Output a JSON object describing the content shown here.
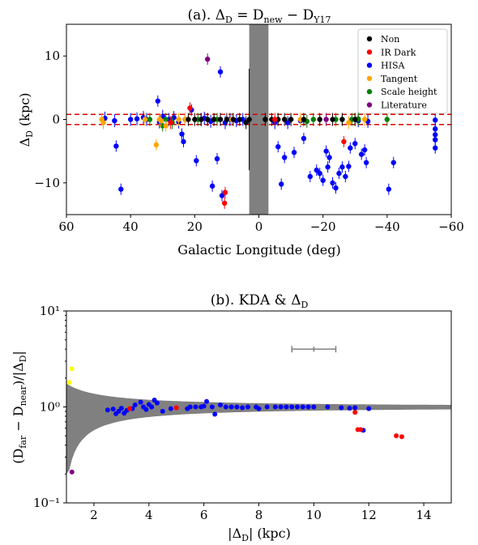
{
  "colors": {
    "Non": "#000000",
    "IR Dark": "#ff0000",
    "HISA": "#0000ff",
    "Tangent": "#ffa500",
    "Scale height": "#008000",
    "Literature": "#800080",
    "yellow": "#ffff00",
    "gray": "#808080"
  },
  "chart_data": [
    {
      "type": "scatter",
      "title": "(a). Δ_D = D_new − D_Y17",
      "xlabel": "Galactic Longitude (deg)",
      "ylabel": "Δ_D (kpc)",
      "xlim": [
        60,
        -60
      ],
      "ylim": [
        -15,
        15
      ],
      "xticks": [
        60,
        40,
        20,
        0,
        -20,
        -40,
        -60
      ],
      "xtick_labels": [
        "60",
        "40",
        "20",
        "0",
        "−20",
        "−40",
        "−60"
      ],
      "yticks": [
        -10,
        0,
        10
      ],
      "ytick_labels": [
        "−10",
        "0",
        "10"
      ],
      "legend_position": "top-right",
      "legend": [
        "Non",
        "IR Dark",
        "HISA",
        "Tangent",
        "Scale height",
        "Literature"
      ],
      "shaded_longitude_band": [
        -3,
        3
      ],
      "reference_lines_y": [
        -0.8,
        0.8
      ],
      "series": [
        {
          "name": "Non",
          "points": [
            [
              22,
              0
            ],
            [
              20,
              0
            ],
            [
              18,
              0
            ],
            [
              16,
              0
            ],
            [
              14,
              0
            ],
            [
              12,
              0
            ],
            [
              10,
              0
            ],
            [
              8,
              0
            ],
            [
              6,
              0
            ],
            [
              -2,
              0
            ],
            [
              -4,
              0
            ],
            [
              -6,
              0
            ],
            [
              -8,
              0
            ],
            [
              -10,
              0
            ],
            [
              -14,
              0
            ],
            [
              -19,
              0
            ],
            [
              -23,
              0
            ],
            [
              -26,
              0
            ],
            [
              -30,
              0
            ],
            [
              3,
              0
            ],
            [
              4,
              -0.5
            ]
          ]
        },
        {
          "name": "IR Dark",
          "points": [
            [
              21.5,
              1.8
            ],
            [
              10.5,
              -11.5
            ],
            [
              10.7,
              -13.2
            ],
            [
              -26.5,
              -3.5
            ],
            [
              27.5,
              -0.5
            ],
            [
              -5,
              0
            ]
          ]
        },
        {
          "name": "HISA",
          "points": [
            [
              48,
              0.2
            ],
            [
              45,
              -0.2
            ],
            [
              44.5,
              -4.2
            ],
            [
              43,
              -11
            ],
            [
              40,
              0
            ],
            [
              38,
              0.1
            ],
            [
              36,
              0.3
            ],
            [
              35,
              0
            ],
            [
              31.5,
              2.9
            ],
            [
              31,
              -0.4
            ],
            [
              30,
              0.5
            ],
            [
              28,
              0
            ],
            [
              26.5,
              0.3
            ],
            [
              25,
              -0.4
            ],
            [
              24,
              -2.3
            ],
            [
              23.5,
              -3.5
            ],
            [
              23,
              0
            ],
            [
              21,
              1.5
            ],
            [
              19.5,
              -6.5
            ],
            [
              18,
              0
            ],
            [
              17,
              0.2
            ],
            [
              15,
              -0.3
            ],
            [
              14.5,
              -10.5
            ],
            [
              13,
              -6.2
            ],
            [
              12,
              0
            ],
            [
              11.5,
              -12
            ],
            [
              10.5,
              -0.5
            ],
            [
              9,
              0
            ],
            [
              7,
              -0.2
            ],
            [
              5,
              0
            ],
            [
              -5,
              -0.5
            ],
            [
              -6,
              -4.3
            ],
            [
              -7,
              -10.2
            ],
            [
              -8,
              -6
            ],
            [
              -9,
              -0.5
            ],
            [
              -11,
              -5.2
            ],
            [
              -13,
              -0.2
            ],
            [
              -14,
              -3
            ],
            [
              -16,
              -9
            ],
            [
              -18,
              -8
            ],
            [
              -19,
              -8.5
            ],
            [
              -20,
              -9.6
            ],
            [
              -21,
              -5
            ],
            [
              -21.5,
              -7.5
            ],
            [
              -22,
              -6
            ],
            [
              -23,
              -10
            ],
            [
              -24,
              -10.8
            ],
            [
              -25,
              -8.5
            ],
            [
              -26,
              -7.5
            ],
            [
              -27,
              -9
            ],
            [
              -28,
              -7.4
            ],
            [
              -28.5,
              -4.5
            ],
            [
              -30,
              -3.8
            ],
            [
              -31,
              -0.2
            ],
            [
              -32,
              -5.5
            ],
            [
              -33,
              -4.8
            ],
            [
              -33.5,
              -6.8
            ],
            [
              -34,
              -0.3
            ],
            [
              -40.5,
              -11
            ],
            [
              -42,
              -6.8
            ],
            [
              -55,
              -1.5
            ],
            [
              -55,
              -2.4
            ],
            [
              -55,
              -3.2
            ],
            [
              -55,
              -4.5
            ],
            [
              -55,
              -0.1
            ],
            [
              12,
              7.5
            ]
          ]
        },
        {
          "name": "Tangent",
          "points": [
            [
              49,
              0
            ],
            [
              48.5,
              -0.5
            ],
            [
              35.5,
              0
            ],
            [
              32,
              -4
            ],
            [
              31,
              0
            ],
            [
              30.5,
              -0.2
            ],
            [
              29,
              -1
            ],
            [
              25,
              0
            ],
            [
              23,
              0
            ],
            [
              8.5,
              0
            ],
            [
              -6,
              0
            ],
            [
              -13,
              0
            ],
            [
              -28,
              -0.5
            ],
            [
              -30,
              0
            ],
            [
              -33,
              0
            ]
          ]
        },
        {
          "name": "Scale height",
          "points": [
            [
              34,
              0
            ],
            [
              30,
              -1
            ],
            [
              29,
              0
            ],
            [
              27,
              -0.5
            ],
            [
              19,
              0
            ],
            [
              16,
              0
            ],
            [
              13,
              0
            ],
            [
              -10,
              0
            ],
            [
              -14,
              0
            ],
            [
              -15,
              -0.3
            ],
            [
              -17,
              0
            ],
            [
              -24,
              0
            ],
            [
              -26,
              0
            ],
            [
              -29,
              0
            ],
            [
              -31,
              0.1
            ],
            [
              -40,
              0
            ]
          ]
        },
        {
          "name": "Literature",
          "points": [
            [
              16,
              9.5
            ],
            [
              -21,
              0
            ]
          ]
        }
      ]
    },
    {
      "type": "scatter",
      "title": "(b). KDA & Δ_D",
      "xlabel": "|Δ_D| (kpc)",
      "ylabel": "(D_far − D_near)/|Δ_D|",
      "xlim": [
        1,
        15
      ],
      "ylim": [
        0.1,
        10
      ],
      "yscale": "log",
      "xticks": [
        2,
        4,
        6,
        8,
        10,
        12,
        14
      ],
      "xtick_labels": [
        "2",
        "4",
        "6",
        "8",
        "10",
        "12",
        "14"
      ],
      "yticks": [
        0.1,
        1,
        10
      ],
      "ytick_labels": [
        "10⁻¹",
        "10⁰",
        "10¹"
      ],
      "errorbar": {
        "x": 10,
        "y": 4.0,
        "xerr": 0.8,
        "yerr": 0.25
      },
      "series": [
        {
          "name": "HISA",
          "points": [
            [
              2.5,
              0.93
            ],
            [
              2.7,
              0.95
            ],
            [
              2.8,
              0.85
            ],
            [
              2.9,
              0.9
            ],
            [
              3.0,
              0.97
            ],
            [
              3.1,
              0.86
            ],
            [
              3.2,
              0.92
            ],
            [
              3.4,
              0.96
            ],
            [
              3.5,
              1.05
            ],
            [
              3.7,
              1.12
            ],
            [
              3.8,
              1.0
            ],
            [
              3.9,
              0.94
            ],
            [
              4.0,
              1.06
            ],
            [
              4.1,
              1.0
            ],
            [
              4.2,
              1.18
            ],
            [
              4.3,
              1.1
            ],
            [
              4.5,
              0.9
            ],
            [
              4.8,
              0.96
            ],
            [
              5.4,
              0.96
            ],
            [
              5.5,
              1.0
            ],
            [
              5.7,
              1.0
            ],
            [
              5.9,
              1.0
            ],
            [
              6.0,
              1.02
            ],
            [
              6.1,
              1.14
            ],
            [
              6.3,
              1.0
            ],
            [
              6.4,
              0.84
            ],
            [
              6.6,
              1.05
            ],
            [
              6.8,
              1.0
            ],
            [
              7.0,
              1.0
            ],
            [
              7.2,
              1.0
            ],
            [
              7.4,
              0.98
            ],
            [
              7.6,
              1.0
            ],
            [
              7.9,
              1.0
            ],
            [
              8.0,
              0.96
            ],
            [
              8.3,
              1.0
            ],
            [
              8.6,
              1.0
            ],
            [
              8.8,
              1.0
            ],
            [
              9.0,
              1.0
            ],
            [
              9.2,
              1.0
            ],
            [
              9.4,
              1.0
            ],
            [
              9.6,
              1.0
            ],
            [
              9.8,
              1.0
            ],
            [
              10.0,
              1.0
            ],
            [
              10.5,
              1.0
            ],
            [
              11.0,
              0.98
            ],
            [
              11.5,
              0.98
            ],
            [
              12.0,
              0.96
            ],
            [
              11.3,
              0.97
            ],
            [
              11.8,
              0.57
            ]
          ]
        },
        {
          "name": "IR Dark",
          "points": [
            [
              3.3,
              0.96
            ],
            [
              5.0,
              0.98
            ],
            [
              11.5,
              0.88
            ],
            [
              11.6,
              0.58
            ],
            [
              11.7,
              0.58
            ],
            [
              13.0,
              0.5
            ],
            [
              13.2,
              0.49
            ]
          ]
        },
        {
          "name": "yellow",
          "points": [
            [
              1.1,
              1.8
            ],
            [
              1.2,
              2.5
            ]
          ]
        },
        {
          "name": "Literature",
          "points": [
            [
              1.2,
              0.21
            ]
          ]
        }
      ]
    }
  ]
}
